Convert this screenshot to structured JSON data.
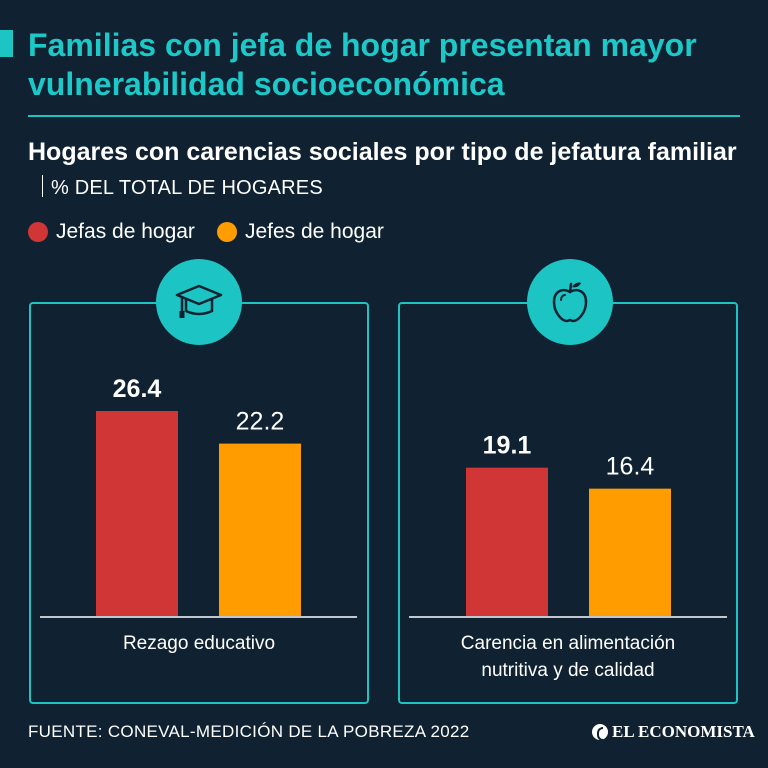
{
  "header": {
    "title": "Familias con jefa de hogar presentan mayor vulnerabilidad socioeconómica",
    "subtitle": "Hogares con carencias sociales por tipo de jefatura familiar",
    "unit": "% DEL TOTAL DE HOGARES"
  },
  "footer": {
    "source": "FUENTE: CONEVAL-MEDICIÓN DE LA POBREZA 2022",
    "brand": "EL ECONOMISTA"
  },
  "colors": {
    "background": "#102231",
    "accent": "#1cc4c4",
    "jefas": "#d13636",
    "jefes": "#ff9c00"
  },
  "icons": [
    "graduation-cap-icon",
    "apple-icon"
  ],
  "chart_data": {
    "type": "bar",
    "legend": [
      "Jefas de hogar",
      "Jefes de hogar"
    ],
    "legend_placement": "top-left",
    "grid": false,
    "ylim": [
      0,
      30
    ],
    "categories": [
      "Rezago educativo",
      "Carencia en alimentación nutritiva y de calidad"
    ],
    "series": [
      {
        "name": "Jefas de hogar",
        "values": [
          26.4,
          19.1
        ],
        "labels": [
          "26.4",
          "19.1"
        ]
      },
      {
        "name": "Jefes de hogar",
        "values": [
          22.2,
          16.4
        ],
        "labels": [
          "22.2",
          "16.4"
        ]
      }
    ]
  }
}
